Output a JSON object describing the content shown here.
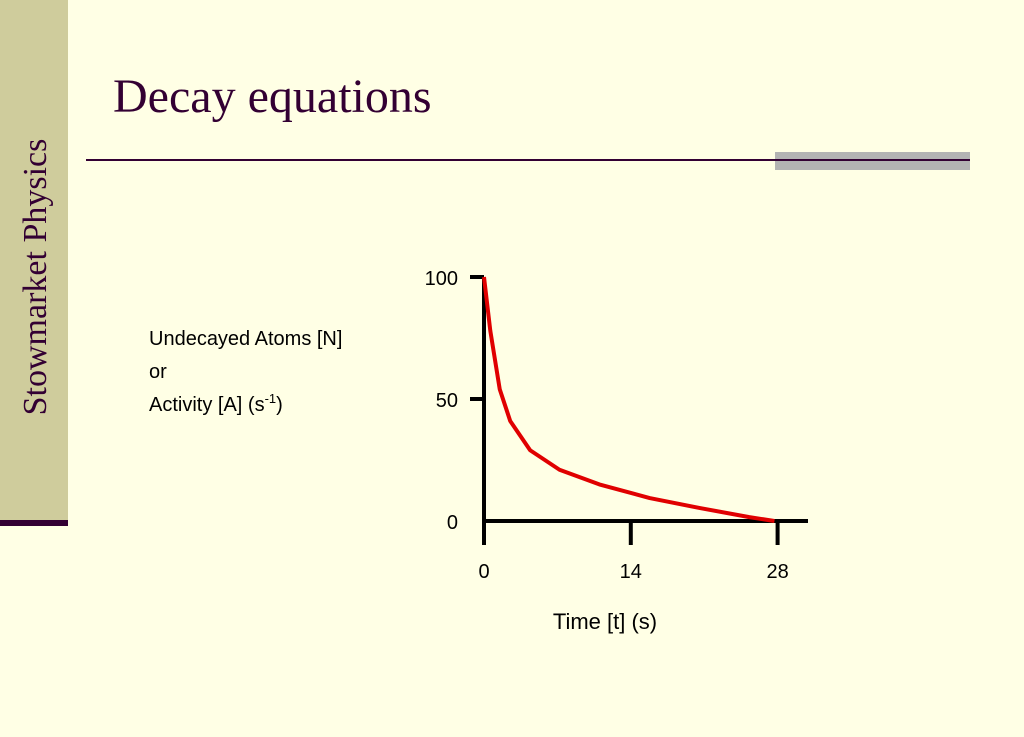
{
  "sidebar": {
    "text": "Stowmarket Physics"
  },
  "title": "Decay equations",
  "chart_data": {
    "type": "line",
    "ylabel": [
      "Undecayed Atoms [N]",
      "or",
      "Activity [A] (s",
      "-1",
      ")"
    ],
    "xlabel": "Time [t] (s)",
    "x": [
      0,
      0.6,
      1.5,
      2.5,
      4.4,
      7.2,
      11,
      15.8,
      20.6,
      25.3,
      27.7
    ],
    "series": [
      {
        "color": "#e00000",
        "values": [
          100,
          78,
          54,
          41,
          29,
          21,
          15,
          9.4,
          5.3,
          1.6,
          0
        ]
      }
    ],
    "xlim": [
      0,
      30.9
    ],
    "ylim": [
      0,
      100
    ],
    "xticks": [
      0,
      14,
      28
    ],
    "yticks": [
      0,
      50,
      100
    ]
  }
}
